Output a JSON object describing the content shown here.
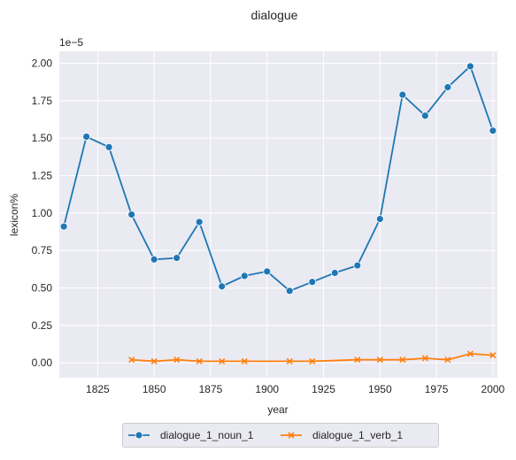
{
  "chart_data": {
    "type": "line",
    "title": "dialogue",
    "xlabel": "year",
    "ylabel": "lexicon%",
    "y_offset_label": "1e−5",
    "xlim": [
      1808,
      2002
    ],
    "ylim": [
      -0.1,
      2.08
    ],
    "x_ticks": [
      1825,
      1850,
      1875,
      1900,
      1925,
      1950,
      1975,
      2000
    ],
    "y_ticks": [
      0.0,
      0.25,
      0.5,
      0.75,
      1.0,
      1.25,
      1.5,
      1.75,
      2.0
    ],
    "y_tick_labels": [
      "0.00",
      "0.25",
      "0.50",
      "0.75",
      "1.00",
      "1.25",
      "1.50",
      "1.75",
      "2.00"
    ],
    "grid": true,
    "legend_placement": "bottom-center",
    "series": [
      {
        "name": "dialogue_1_noun_1",
        "color": "#1f77b4",
        "marker": "circle",
        "x": [
          1810,
          1820,
          1830,
          1840,
          1850,
          1860,
          1870,
          1880,
          1890,
          1900,
          1910,
          1920,
          1930,
          1940,
          1950,
          1960,
          1970,
          1980,
          1990,
          2000
        ],
        "y": [
          0.91,
          1.51,
          1.44,
          0.99,
          0.69,
          0.7,
          0.94,
          0.51,
          0.58,
          0.61,
          0.48,
          0.54,
          0.6,
          0.65,
          0.96,
          1.79,
          1.65,
          1.84,
          1.98,
          1.55
        ]
      },
      {
        "name": "dialogue_1_verb_1",
        "color": "#ff7f0e",
        "marker": "x",
        "x": [
          1840,
          1850,
          1860,
          1870,
          1880,
          1890,
          1910,
          1920,
          1940,
          1950,
          1960,
          1970,
          1980,
          1990,
          2000
        ],
        "y": [
          0.02,
          0.01,
          0.02,
          0.01,
          0.01,
          0.01,
          0.01,
          0.01,
          0.02,
          0.02,
          0.02,
          0.03,
          0.02,
          0.06,
          0.05
        ]
      }
    ]
  }
}
